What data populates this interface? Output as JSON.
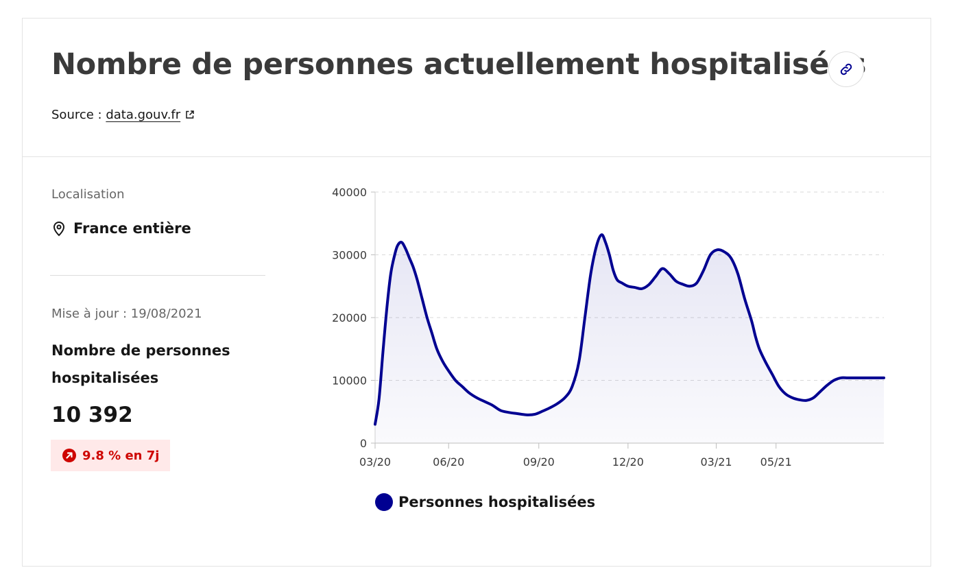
{
  "header": {
    "title": "Nombre de personnes actuellement hospitalisées",
    "source_prefix": "Source : ",
    "source_link": "data.gouv.fr"
  },
  "left_panel": {
    "location_label": "Localisation",
    "location_value": "France entière",
    "update_label": "Mise à jour : 19/08/2021",
    "metric_name": "Nombre de personnes hospitalisées",
    "metric_value": "10 392",
    "trend_badge": "9.8 % en 7j"
  },
  "icons": {
    "link": "link-icon",
    "external": "external-link-icon",
    "location": "map-pin-icon",
    "trend": "arrow-up-right-circle-icon"
  },
  "colors": {
    "series": "#000091",
    "badge_bg": "#ffe9e9",
    "badge_text": "#ce0500"
  },
  "chart_data": {
    "type": "area",
    "title": "",
    "xlabel": "",
    "ylabel": "",
    "x_ticks": [
      "03/20",
      "06/20",
      "09/20",
      "12/20",
      "03/21",
      "05/21"
    ],
    "y_ticks": [
      "0",
      "10000",
      "20000",
      "30000",
      "40000"
    ],
    "ylim": [
      0,
      40000
    ],
    "grid": true,
    "legend_position": "bottom",
    "series": [
      {
        "name": "Personnes hospitalisées",
        "color": "#000091",
        "x": [
          "2020-03-18",
          "2020-03-22",
          "2020-03-26",
          "2020-03-30",
          "2020-04-03",
          "2020-04-07",
          "2020-04-10",
          "2020-04-14",
          "2020-04-18",
          "2020-04-22",
          "2020-04-26",
          "2020-04-30",
          "2020-05-05",
          "2020-05-10",
          "2020-05-15",
          "2020-05-20",
          "2020-05-26",
          "2020-06-01",
          "2020-06-08",
          "2020-06-15",
          "2020-06-22",
          "2020-06-30",
          "2020-07-08",
          "2020-07-16",
          "2020-07-24",
          "2020-08-01",
          "2020-08-10",
          "2020-08-20",
          "2020-08-28",
          "2020-09-05",
          "2020-09-12",
          "2020-09-20",
          "2020-09-28",
          "2020-10-05",
          "2020-10-12",
          "2020-10-18",
          "2020-10-24",
          "2020-10-30",
          "2020-11-04",
          "2020-11-08",
          "2020-11-12",
          "2020-11-16",
          "2020-11-20",
          "2020-11-25",
          "2020-12-01",
          "2020-12-08",
          "2020-12-15",
          "2020-12-22",
          "2020-12-29",
          "2021-01-05",
          "2021-01-12",
          "2021-01-19",
          "2021-01-26",
          "2021-02-02",
          "2021-02-09",
          "2021-02-16",
          "2021-02-23",
          "2021-03-02",
          "2021-03-09",
          "2021-03-16",
          "2021-03-23",
          "2021-03-30",
          "2021-04-06",
          "2021-04-10",
          "2021-04-14",
          "2021-04-20",
          "2021-04-27",
          "2021-05-04",
          "2021-05-11",
          "2021-05-18",
          "2021-05-25",
          "2021-06-01",
          "2021-06-08",
          "2021-06-15",
          "2021-06-22",
          "2021-06-29",
          "2021-07-06",
          "2021-07-13",
          "2021-07-20",
          "2021-07-27",
          "2021-08-03",
          "2021-08-10",
          "2021-08-15",
          "2021-08-19"
        ],
        "values": [
          3000,
          7000,
          14500,
          21500,
          27000,
          30000,
          31500,
          32000,
          31000,
          29500,
          28000,
          26000,
          23000,
          20000,
          17500,
          15000,
          13000,
          11500,
          10000,
          9000,
          8000,
          7200,
          6600,
          6000,
          5200,
          4900,
          4700,
          4500,
          4600,
          5100,
          5600,
          6300,
          7300,
          9000,
          13000,
          20000,
          27000,
          31500,
          33200,
          32000,
          30000,
          27500,
          26000,
          25500,
          25000,
          24800,
          24600,
          25200,
          26500,
          27800,
          27000,
          25800,
          25300,
          25000,
          25500,
          27500,
          30000,
          30800,
          30500,
          29500,
          27000,
          23000,
          19500,
          17000,
          15000,
          13000,
          11000,
          9000,
          7800,
          7200,
          6900,
          6800,
          7200,
          8200,
          9200,
          10000,
          10392,
          10392,
          10392,
          10392,
          10392,
          10392,
          10392,
          10392
        ]
      }
    ]
  }
}
